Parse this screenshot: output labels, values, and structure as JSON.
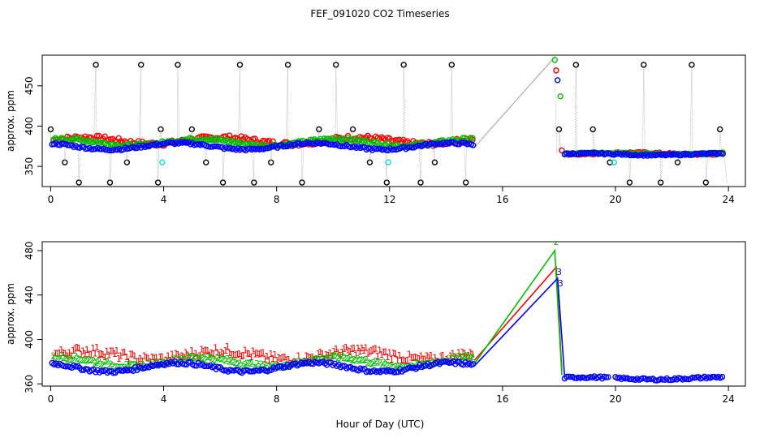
{
  "chart_data": [
    {
      "type": "scatter",
      "title": "FEF_091020  CO2 Timeseries",
      "ylabel": "approx. ppm",
      "xlabel": "",
      "xlim": [
        -0.3,
        24.6
      ],
      "ylim": [
        325,
        488
      ],
      "x_ticks": [
        "0",
        "4",
        "8",
        "12",
        "16",
        "20",
        "24"
      ],
      "y_ticks": [
        "350",
        "400",
        "450"
      ],
      "grid": false,
      "series": [
        {
          "color": "#ff0000",
          "marker": "circle",
          "segments": [
            {
              "x0": 0.1,
              "x1": 15.0,
              "base": 382,
              "amp": 4,
              "noise": 3
            },
            {
              "x0": 17.9,
              "x1": 17.9,
              "base": 469,
              "amp": 0,
              "noise": 0
            },
            {
              "x0": 18.1,
              "x1": 18.1,
              "base": 370,
              "amp": 0,
              "noise": 0
            },
            {
              "x0": 18.2,
              "x1": 23.8,
              "base": 366,
              "amp": 1,
              "noise": 1
            }
          ]
        },
        {
          "color": "#00c000",
          "marker": "circle",
          "segments": [
            {
              "x0": 0.1,
              "x1": 15.0,
              "base": 380,
              "amp": 4,
              "noise": 2
            },
            {
              "x0": 17.85,
              "x1": 17.85,
              "base": 482,
              "amp": 0,
              "noise": 0
            },
            {
              "x0": 18.05,
              "x1": 18.05,
              "base": 437,
              "amp": 0,
              "noise": 0
            },
            {
              "x0": 18.2,
              "x1": 23.8,
              "base": 366,
              "amp": 1,
              "noise": 1
            }
          ]
        },
        {
          "color": "#0000ff",
          "marker": "circle",
          "segments": [
            {
              "x0": 0.05,
              "x1": 15.0,
              "base": 375,
              "amp": 4,
              "noise": 1.5
            },
            {
              "x0": 17.95,
              "x1": 17.95,
              "base": 457,
              "amp": 0,
              "noise": 0
            },
            {
              "x0": 18.2,
              "x1": 23.8,
              "base": 365,
              "amp": 1,
              "noise": 1
            }
          ]
        }
      ],
      "spikes": [
        0.0,
        0.5,
        1.0,
        1.6,
        2.1,
        2.7,
        3.2,
        3.8,
        3.9,
        4.5,
        5.0,
        5.5,
        6.1,
        6.7,
        7.2,
        7.8,
        8.4,
        8.9,
        9.5,
        10.1,
        10.7,
        11.3,
        11.9,
        12.5,
        13.1,
        13.6,
        14.2,
        14.7,
        18.0,
        18.6,
        19.2,
        19.8,
        20.5,
        21.0,
        21.6,
        22.2,
        22.7,
        23.2,
        23.7,
        23.9
      ],
      "spike_levels": [
        396,
        355,
        330,
        476,
        330,
        355,
        476,
        330,
        396,
        476
      ],
      "cyan_points": [
        [
          3.95,
          355
        ],
        [
          11.95,
          355
        ],
        [
          19.95,
          355
        ]
      ]
    },
    {
      "type": "scatter",
      "title": "",
      "ylabel": "approx. ppm",
      "xlabel": "Hour of Day (UTC)",
      "xlim": [
        -0.3,
        24.6
      ],
      "ylim": [
        358,
        488
      ],
      "x_ticks": [
        "0",
        "4",
        "8",
        "12",
        "16",
        "20",
        "24"
      ],
      "y_ticks": [
        "360",
        "400",
        "440",
        "480"
      ],
      "grid": false,
      "series": [
        {
          "color": "#ff0000",
          "marker": "1",
          "segments": [
            {
              "x0": 0.1,
              "x1": 15.0,
              "base": 386,
              "amp": 4,
              "noise": 4
            }
          ],
          "line": [
            [
              15.0,
              381
            ],
            [
              17.9,
              465
            ],
            [
              18.1,
              372
            ]
          ]
        },
        {
          "color": "#00c000",
          "marker": "2",
          "segments": [
            {
              "x0": 0.1,
              "x1": 15.0,
              "base": 380,
              "amp": 4,
              "noise": 2
            }
          ],
          "line": [
            [
              15.0,
              378
            ],
            [
              17.85,
              480
            ],
            [
              18.1,
              368
            ]
          ]
        },
        {
          "color": "#0000ff",
          "marker": "circle",
          "segments": [
            {
              "x0": 0.05,
              "x1": 15.0,
              "base": 375,
              "amp": 4,
              "noise": 1.5
            },
            {
              "x0": 18.2,
              "x1": 19.8,
              "base": 365,
              "amp": 1,
              "noise": 1
            },
            {
              "x0": 20.0,
              "x1": 23.8,
              "base": 365,
              "amp": 1,
              "noise": 1
            }
          ],
          "line": [
            [
              15.0,
              376
            ],
            [
              17.95,
              455
            ],
            [
              18.2,
              366
            ]
          ]
        }
      ],
      "labels": [
        {
          "text": "2",
          "color": "#00c000",
          "x": 17.9,
          "y": 485
        },
        {
          "text": "3",
          "color": "#0000ff",
          "x": 18.0,
          "y": 458
        },
        {
          "text": "3",
          "color": "#0000ff",
          "x": 18.05,
          "y": 448
        }
      ]
    }
  ]
}
